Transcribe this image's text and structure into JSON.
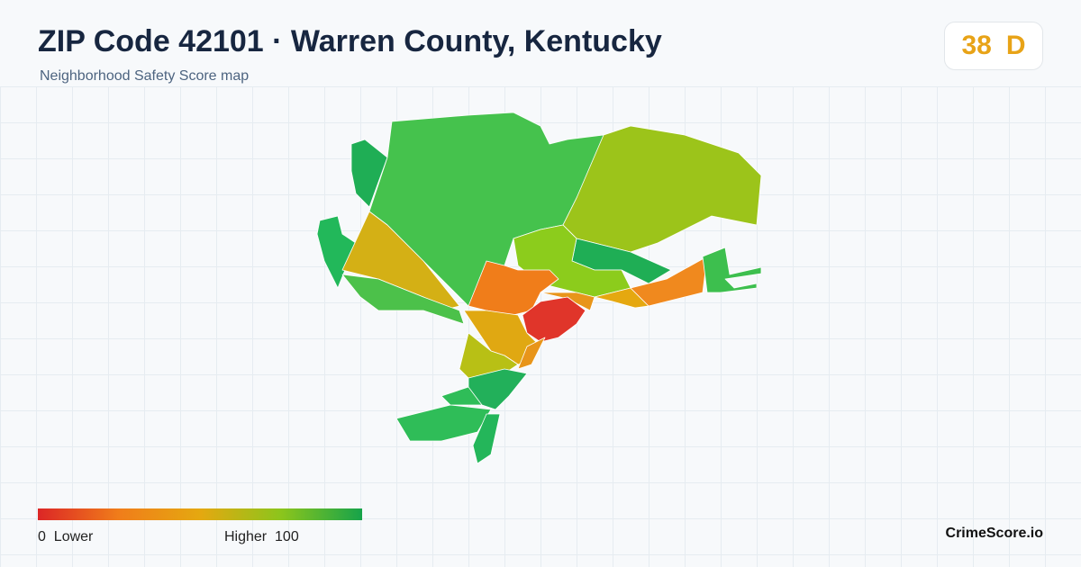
{
  "header": {
    "title": "ZIP Code 42101 · Warren County, Kentucky",
    "subtitle": "Neighborhood Safety Score map",
    "score": 38,
    "grade": "D"
  },
  "legend": {
    "min": 0,
    "min_label": "Lower",
    "max_label": "Higher",
    "max": 100
  },
  "brand": "CrimeScore.io"
}
